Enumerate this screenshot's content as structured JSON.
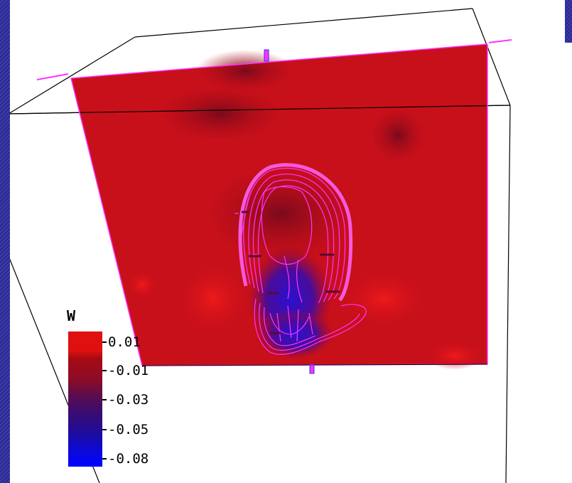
{
  "plot": {
    "legend": {
      "title": "W",
      "ticks": [
        "0.01",
        "-0.01",
        "-0.03",
        "-0.05",
        "-0.08"
      ],
      "value_range": [
        -0.08,
        0.01
      ],
      "colors": {
        "high": "#e01010",
        "mid": "#5a0c50",
        "low": "#0000ff"
      }
    },
    "surface_color": "#c8101a",
    "contour_color": "#ff33ff",
    "axis_marker_color": "#ff33ff",
    "box_edge_color": "#000000"
  }
}
